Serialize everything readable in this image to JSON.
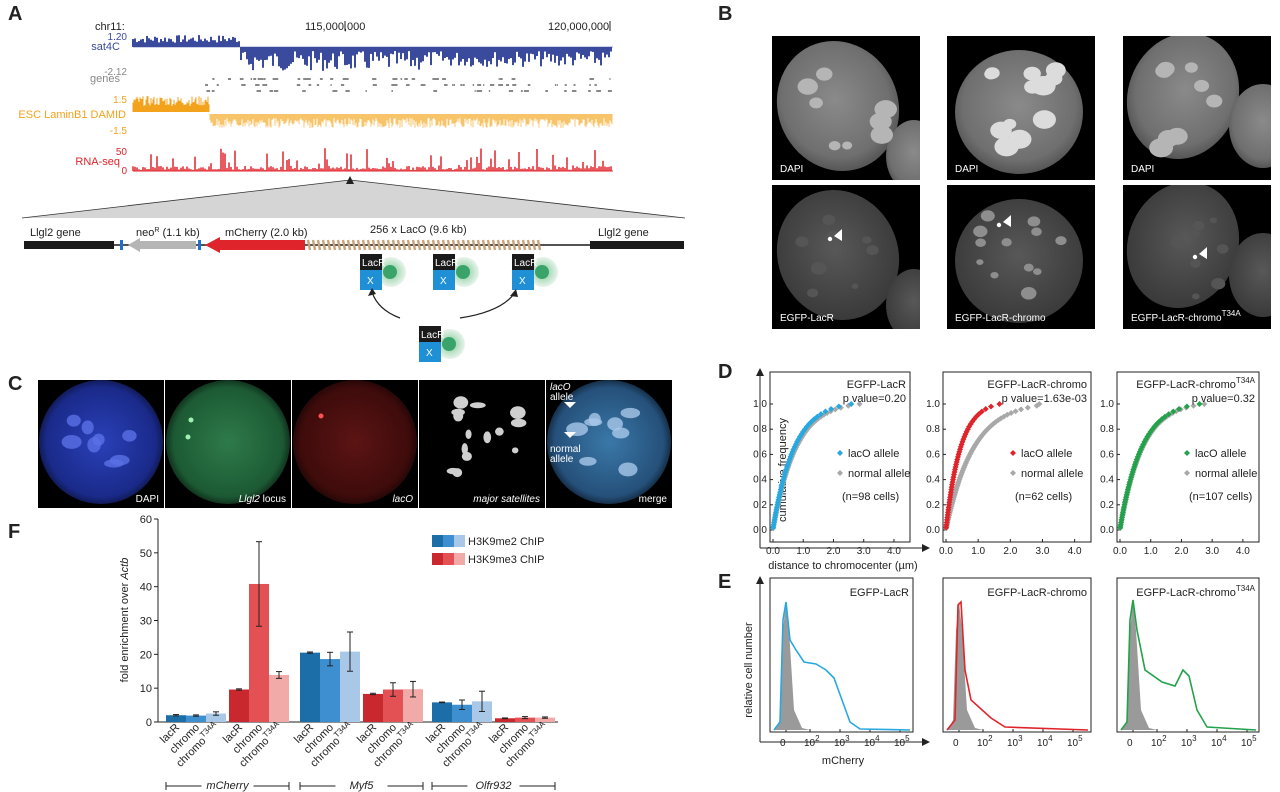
{
  "panels": {
    "A": "A",
    "B": "B",
    "C": "C",
    "D": "D",
    "E": "E",
    "F": "F"
  },
  "panelA": {
    "chrom": "chr11:",
    "pos1": "115,000,000",
    "pos2": "120,000,000",
    "tracks": [
      {
        "name": "sat4C",
        "top": "1.20",
        "bottom": "-2.12",
        "color": "#3a4a9c"
      },
      {
        "name": "genes",
        "top": "",
        "bottom": "",
        "color": "#888888"
      },
      {
        "name": "ESC LaminB1 DAMID",
        "top": "1.5",
        "bottom": "-1.5",
        "color": "#f3a21c"
      },
      {
        "name": "RNA-seq",
        "top": "50",
        "bottom": "0",
        "color": "#e0242b"
      }
    ],
    "construct": {
      "gene_left": "Llgl2 gene",
      "gene_right": "Llgl2 gene",
      "neo_prefix": "neo",
      "neo_sup": "R",
      "neo_size": " (1.1 kb)",
      "mcherry": "mCherry (2.0 kb)",
      "laco": "256 x LacO (9.6 kb)",
      "lacr": "LacR",
      "x": "X"
    }
  },
  "panelB": {
    "labels": [
      "DAPI",
      "DAPI",
      "DAPI",
      "EGFP-LacR",
      "EGFP-LacR-chromo",
      "EGFP-LacR-chromo"
    ],
    "sup": "T34A"
  },
  "panelC": {
    "labels": [
      "DAPI",
      "locus",
      "lacO",
      "major satellites",
      "merge"
    ],
    "locus_italic": "Llgl2",
    "lacO_allele_1": "lacO",
    "lacO_allele_2": "allele",
    "normal_allele_1": "normal",
    "normal_allele_2": "allele"
  },
  "chart_data": [
    {
      "type": "scatter",
      "id": "D",
      "xlabel": "distance to chromocenter (µm)",
      "ylabel": "cumulative frequency",
      "xticks": [
        "0.0",
        "1.0",
        "2.0",
        "3.0",
        "4.0"
      ],
      "yticks": [
        "0.0",
        "0.2",
        "0.4",
        "0.6",
        "0.8",
        "1.0"
      ],
      "xlim": [
        0,
        4.5
      ],
      "ylim": [
        0,
        1.1
      ],
      "subplots": [
        {
          "title": "EGFP-LacR",
          "sup": "",
          "pvalue": "p value=0.20",
          "lacO_color": "#29a8e0",
          "n": "(n=98 cells)",
          "lacO_max": 3.5,
          "normal_max": 3.6,
          "lacO_mid": 0.7,
          "normal_mid": 0.75
        },
        {
          "title": "EGFP-LacR-chromo",
          "sup": "",
          "pvalue": "p value=1.63e-03",
          "lacO_color": "#e0242b",
          "n": "(n=62 cells)",
          "lacO_max": 3.0,
          "normal_max": 2.9,
          "lacO_mid": 0.45,
          "normal_mid": 0.85
        },
        {
          "title": "EGFP-LacR-chromo",
          "sup": "T34A",
          "pvalue": "p value=0.32",
          "lacO_color": "#22a24a",
          "n": "(n=107 cells)",
          "lacO_max": 4.2,
          "normal_max": 4.0,
          "lacO_mid": 0.7,
          "normal_mid": 0.72
        }
      ],
      "legend": [
        "lacO allele",
        "normal allele"
      ],
      "normal_color": "#a8a8a8"
    },
    {
      "type": "area",
      "id": "E",
      "xlabel": "mCherry",
      "ylabel": "relative cell number",
      "xticks": [
        "0",
        "10",
        "10",
        "10",
        "10"
      ],
      "xtick_sup": [
        "",
        "2",
        "3",
        "4",
        "5"
      ],
      "subplots": [
        {
          "title": "EGFP-LacR",
          "sup": "",
          "color": "#29a8e0"
        },
        {
          "title": "EGFP-LacR-chromo",
          "sup": "",
          "color": "#e0242b"
        },
        {
          "title": "EGFP-LacR-chromo",
          "sup": "T34A",
          "color": "#22a24a"
        }
      ]
    },
    {
      "type": "bar",
      "id": "F",
      "ylabel_main": "fold enrichment over ",
      "ylabel_italic": "Actb",
      "ylim": [
        0,
        60
      ],
      "yticks": [
        "0",
        "10",
        "20",
        "30",
        "40",
        "50",
        "60"
      ],
      "legend": [
        "H3K9me2 ChIP",
        "H3K9me3 ChIP"
      ],
      "blue_colors": [
        "#1c6ea8",
        "#3d8fcf",
        "#a9c8e8"
      ],
      "red_colors": [
        "#c8282e",
        "#e35154",
        "#f2aaa9"
      ],
      "groups": [
        {
          "name": "mCherry",
          "me2": [
            {
              "label": "lacR",
              "sup": "",
              "value": 2.0,
              "err": 0.2
            },
            {
              "label": "chromo",
              "sup": "",
              "value": 1.9,
              "err": 0.2
            },
            {
              "label": "chromo",
              "sup": "T34A",
              "value": 2.5,
              "err": 0.5
            }
          ],
          "me3": [
            {
              "label": "lacR",
              "sup": "",
              "value": 9.6,
              "err": 0.2
            },
            {
              "label": "chromo",
              "sup": "",
              "value": 40.8,
              "err": 12.5
            },
            {
              "label": "chromo",
              "sup": "T34A",
              "value": 13.9,
              "err": 1.0
            }
          ]
        },
        {
          "name": "Myf5",
          "me2": [
            {
              "label": "lacR",
              "sup": "",
              "value": 20.5,
              "err": 0.2
            },
            {
              "label": "chromo",
              "sup": "",
              "value": 18.6,
              "err": 2.0
            },
            {
              "label": "chromo",
              "sup": "T34A",
              "value": 20.8,
              "err": 5.8
            }
          ],
          "me3": [
            {
              "label": "lacR",
              "sup": "",
              "value": 8.3,
              "err": 0.2
            },
            {
              "label": "chromo",
              "sup": "",
              "value": 9.6,
              "err": 2.0
            },
            {
              "label": "chromo",
              "sup": "T34A",
              "value": 9.7,
              "err": 2.3
            }
          ]
        },
        {
          "name": "Olfr932",
          "me2": [
            {
              "label": "lacR",
              "sup": "",
              "value": 5.8,
              "err": 0.1
            },
            {
              "label": "chromo",
              "sup": "",
              "value": 5.1,
              "err": 1.4
            },
            {
              "label": "chromo",
              "sup": "T34A",
              "value": 6.1,
              "err": 3.0
            }
          ],
          "me3": [
            {
              "label": "lacR",
              "sup": "",
              "value": 1.1,
              "err": 0.1
            },
            {
              "label": "chromo",
              "sup": "",
              "value": 1.3,
              "err": 0.3
            },
            {
              "label": "chromo",
              "sup": "T34A",
              "value": 1.3,
              "err": 0.2
            }
          ]
        }
      ]
    }
  ]
}
